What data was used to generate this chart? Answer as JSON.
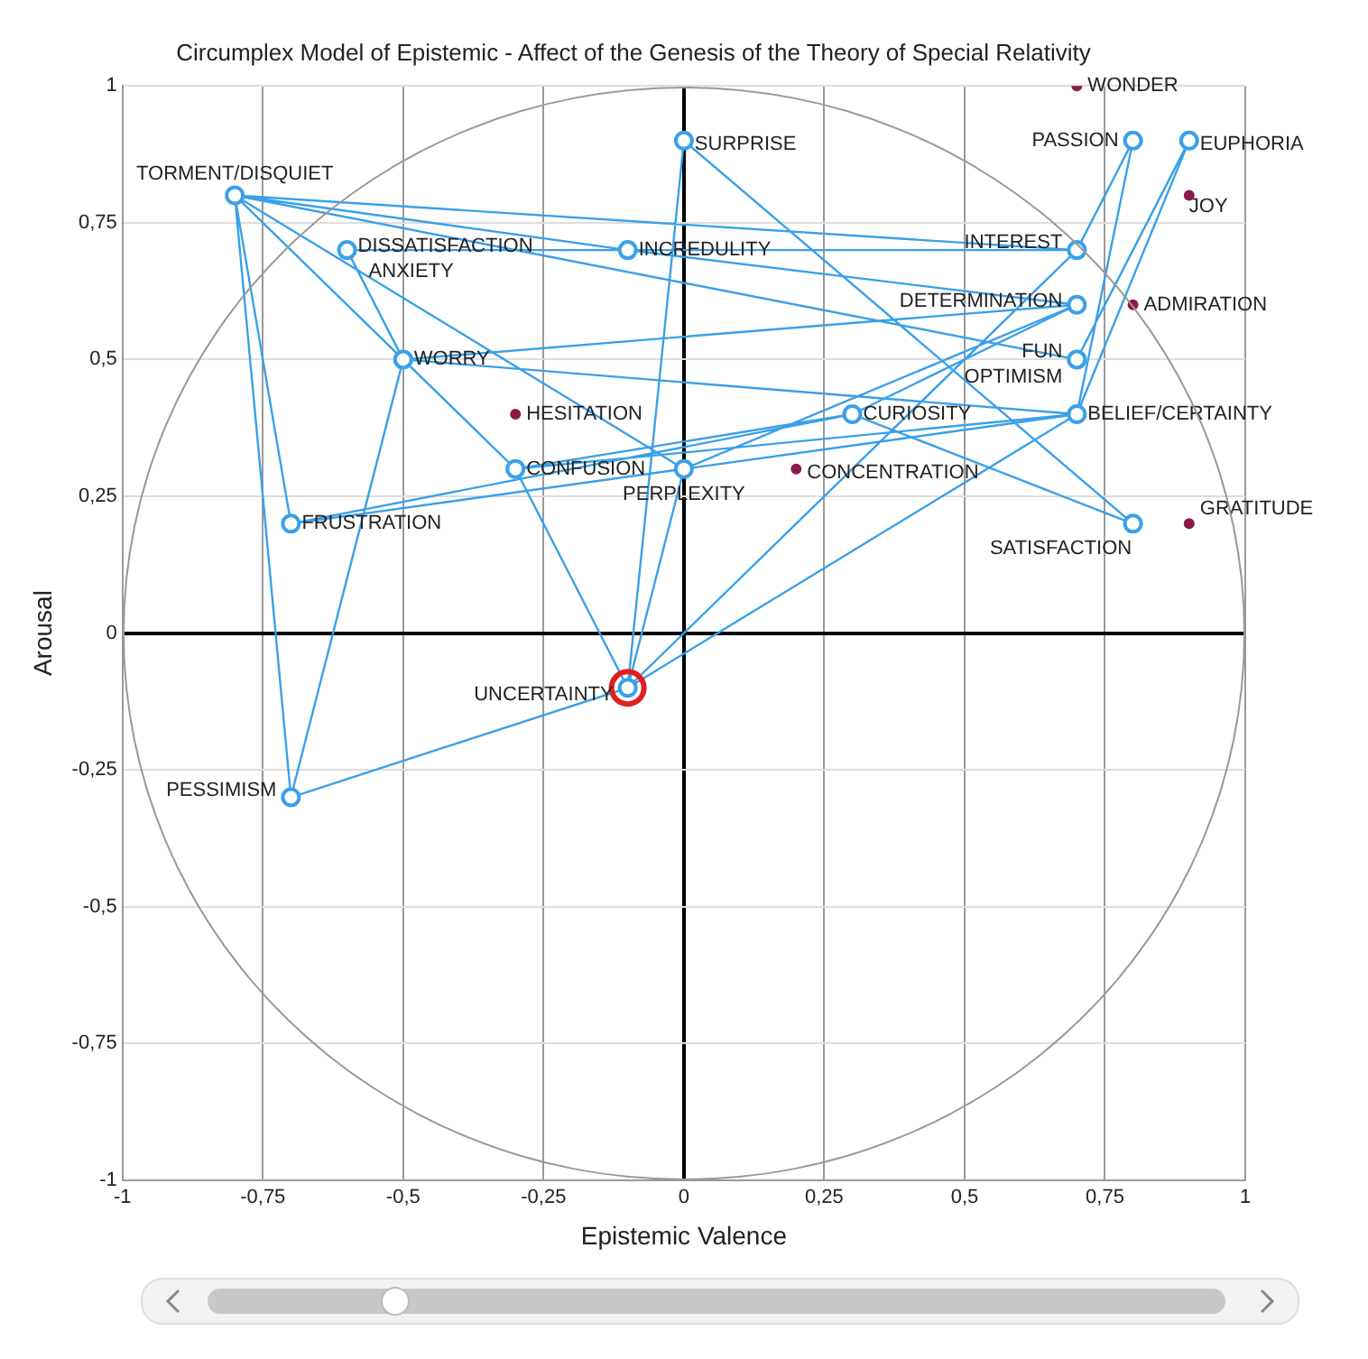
{
  "chart_data": {
    "type": "scatter",
    "title": "Circumplex Model of Epistemic - Affect of the Genesis of the Theory of Special Relativity",
    "xlabel": "Epistemic Valence",
    "ylabel": "Arousal",
    "xlim": [
      -1,
      1
    ],
    "ylim": [
      -1,
      1
    ],
    "xticks": [
      -1,
      {
        "value": -0.75,
        "label": "-0,75"
      },
      {
        "value": -0.5,
        "label": "-0,5"
      },
      {
        "value": -0.25,
        "label": "-0,25"
      },
      0,
      {
        "value": 0.25,
        "label": "0,25"
      },
      {
        "value": 0.5,
        "label": "0,5"
      },
      {
        "value": 0.75,
        "label": "0,75"
      },
      1
    ],
    "yticks": [
      -1,
      {
        "value": -0.75,
        "label": "-0,75"
      },
      {
        "value": -0.5,
        "label": "-0,5"
      },
      {
        "value": -0.25,
        "label": "-0,25"
      },
      0,
      {
        "value": 0.25,
        "label": "0,25"
      },
      {
        "value": 0.5,
        "label": "0,5"
      },
      {
        "value": 0.75,
        "label": "0,75"
      },
      1
    ],
    "grid": true,
    "legend": false,
    "series": [
      {
        "type": "line",
        "color": "#3aa0e8",
        "marker": "none",
        "x": [
          -0.1,
          -0.7,
          -0.8,
          0.7,
          -0.6,
          -0.5,
          0.7,
          -0.3,
          0.3,
          -0.7,
          0.7,
          0,
          -0.8,
          -0.1,
          0.7,
          -0.5,
          -0.7,
          -0.1,
          0.7,
          0.8,
          0.7,
          0.9,
          0.7,
          -0.8,
          -0.7,
          -0.8,
          -0.3,
          -0.1,
          0,
          0.8,
          0.3,
          0.7,
          0,
          -0.1,
          0.7
        ],
        "values": [
          -0.1,
          -0.3,
          0.8,
          0.7,
          0.7,
          0.5,
          0.4,
          0.3,
          0.4,
          0.2,
          0.4,
          0.3,
          0.8,
          0.7,
          0.6,
          0.5,
          -0.3,
          -0.1,
          0.7,
          0.9,
          0.4,
          0.9,
          0.5,
          0.8,
          0.2,
          0.8,
          0.3,
          -0.1,
          0.9,
          0.2,
          0.4,
          0.6,
          0.3,
          -0.1,
          0.4
        ]
      },
      {
        "type": "scatter",
        "color": "#3aa0e8",
        "marker": "circle",
        "x": [
          0.8,
          0.9,
          0.7,
          0.7,
          0.7,
          0.7,
          0.3,
          0.8,
          0,
          -0.1,
          -0.8,
          -0.6,
          -0.5,
          -0.3,
          0,
          -0.7,
          -0.1,
          -0.7
        ],
        "values": [
          0.9,
          0.9,
          0.7,
          0.6,
          0.5,
          0.4,
          0.4,
          0.2,
          0.9,
          0.7,
          0.8,
          0.7,
          0.5,
          0.3,
          0.3,
          0.2,
          -0.1,
          -0.3
        ]
      },
      {
        "type": "scatter",
        "color": "#8b1a4a",
        "marker": "circle",
        "x": [
          0.7,
          0.9,
          0.8,
          0.9,
          -0.3,
          0.2
        ],
        "values": [
          1,
          0.8,
          0.6,
          0.2,
          0.4,
          0.3
        ]
      },
      {
        "type": "scatter",
        "color": "#e02020",
        "marker": "circle",
        "x": [
          -0.1
        ],
        "values": [
          -0.1
        ]
      }
    ],
    "annotations": [
      {
        "text": "WONDER",
        "x": 0.7,
        "y": 1
      },
      {
        "text": "PASSION",
        "x": 0.8,
        "y": 0.9
      },
      {
        "text": "EUPHORIA",
        "x": 0.9,
        "y": 0.9
      },
      {
        "text": "JOY",
        "x": 0.9,
        "y": 0.8
      },
      {
        "text": "INTEREST",
        "x": 0.7,
        "y": 0.7
      },
      {
        "text": "DETERMINATION",
        "x": 0.7,
        "y": 0.6
      },
      {
        "text": "ADMIRATION",
        "x": 0.8,
        "y": 0.6
      },
      {
        "text": "FUN",
        "x": 0.7,
        "y": 0.5
      },
      {
        "text": "OPTIMISM",
        "x": 0.7,
        "y": 0.5
      },
      {
        "text": "BELIEF/CERTAINTY",
        "x": 0.7,
        "y": 0.4
      },
      {
        "text": "CURIOSITY",
        "x": 0.3,
        "y": 0.4
      },
      {
        "text": "GRATITUDE",
        "x": 0.9,
        "y": 0.2
      },
      {
        "text": "SATISFACTION",
        "x": 0.8,
        "y": 0.2
      },
      {
        "text": "SURPRISE",
        "x": 0,
        "y": 0.9
      },
      {
        "text": "INCREDULITY",
        "x": -0.1,
        "y": 0.7
      },
      {
        "text": "TORMENT/DISQUIET",
        "x": -0.8,
        "y": 0.8
      },
      {
        "text": "DISSATISFACTION",
        "x": -0.6,
        "y": 0.7
      },
      {
        "text": "ANXIETY",
        "x": -0.6,
        "y": 0.7
      },
      {
        "text": "WORRY",
        "x": -0.5,
        "y": 0.5
      },
      {
        "text": "HESITATION",
        "x": -0.3,
        "y": 0.4
      },
      {
        "text": "CONFUSION",
        "x": -0.3,
        "y": 0.3
      },
      {
        "text": "PERPLEXITY",
        "x": 0,
        "y": 0.3
      },
      {
        "text": "CONCENTRATION",
        "x": 0.2,
        "y": 0.3
      },
      {
        "text": "FRUSTRATION",
        "x": -0.7,
        "y": 0.2
      },
      {
        "text": "UNCERTAINTY",
        "x": -0.1,
        "y": -0.1
      },
      {
        "text": "PESSIMISM",
        "x": -0.7,
        "y": -0.3
      }
    ]
  }
}
